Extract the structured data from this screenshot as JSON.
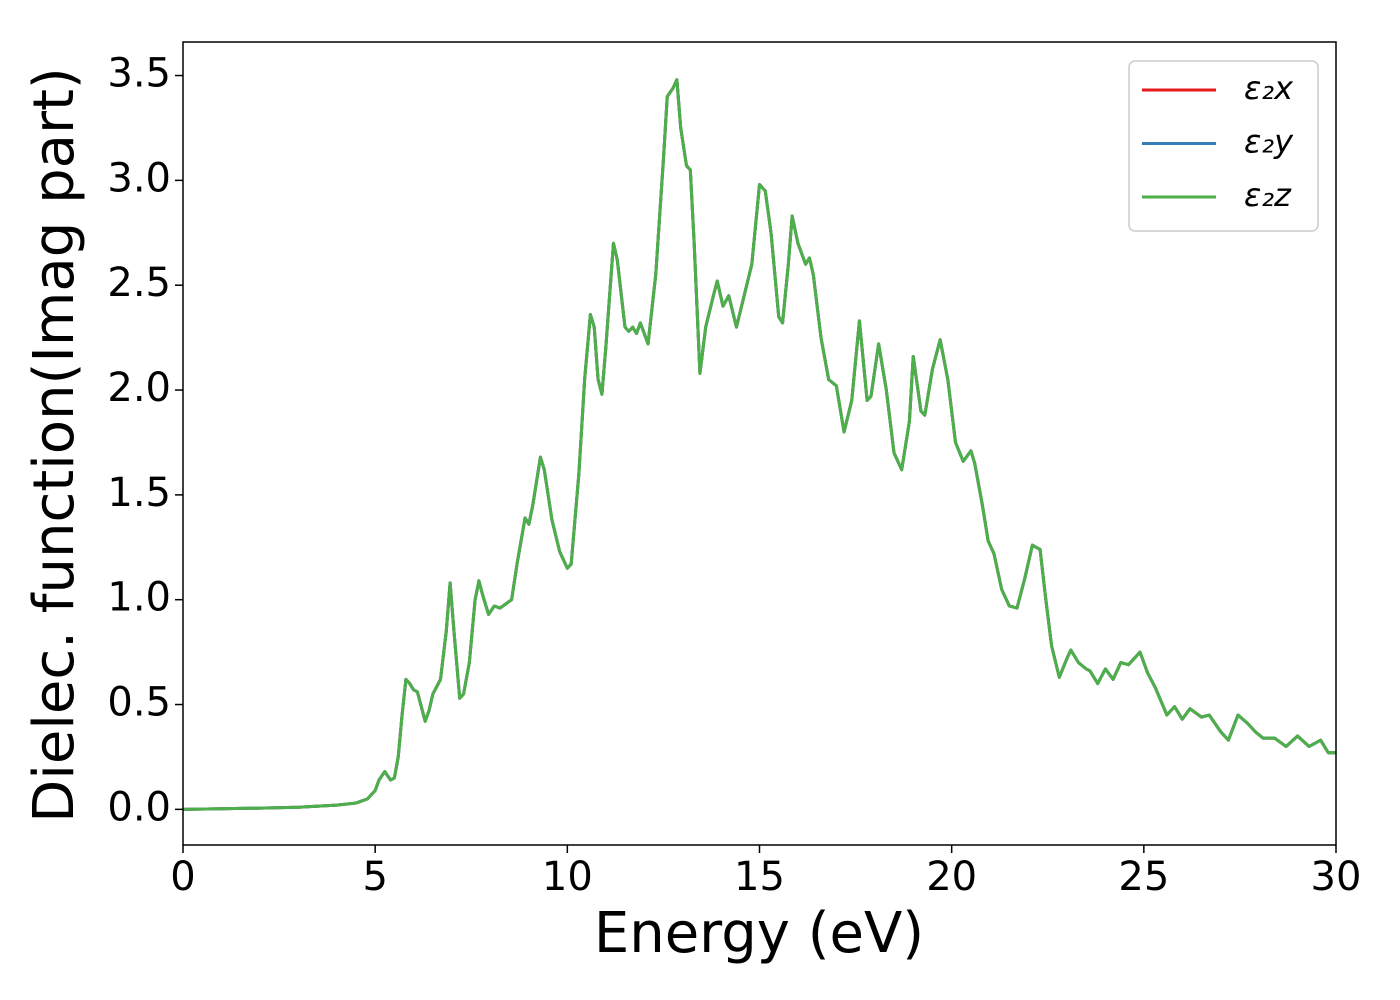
{
  "chart_data": {
    "type": "line",
    "xlabel": "Energy (eV)",
    "ylabel": "Dielec. function(Imag part)",
    "xlim": [
      0,
      30
    ],
    "xticks": [
      0,
      5,
      10,
      15,
      20,
      25,
      30
    ],
    "ylim": [
      -0.17,
      3.66
    ],
    "yticks": [
      {
        "value": 0,
        "label": "0.0"
      },
      0.5,
      {
        "value": 1,
        "label": "1.0"
      },
      1.5,
      {
        "value": 2,
        "label": "2.0"
      },
      2.5,
      {
        "value": 3,
        "label": "3.0"
      },
      3.5
    ],
    "legend": "upper right",
    "x": [
      0,
      1,
      2,
      3,
      4,
      4.5,
      4.8,
      5.0,
      5.1,
      5.25,
      5.4,
      5.5,
      5.6,
      5.7,
      5.8,
      5.9,
      6.0,
      6.1,
      6.3,
      6.4,
      6.5,
      6.7,
      6.85,
      6.95,
      7.05,
      7.2,
      7.3,
      7.45,
      7.6,
      7.7,
      7.8,
      7.95,
      8.1,
      8.25,
      8.4,
      8.55,
      8.7,
      8.9,
      9.0,
      9.1,
      9.3,
      9.4,
      9.6,
      9.8,
      10.0,
      10.1,
      10.3,
      10.45,
      10.6,
      10.7,
      10.8,
      10.9,
      11.0,
      11.2,
      11.3,
      11.5,
      11.6,
      11.7,
      11.8,
      11.9,
      12.1,
      12.3,
      12.5,
      12.6,
      12.75,
      12.85,
      12.95,
      13.1,
      13.2,
      13.3,
      13.45,
      13.6,
      13.8,
      13.9,
      14.05,
      14.2,
      14.4,
      14.6,
      14.8,
      15.0,
      15.15,
      15.3,
      15.5,
      15.6,
      15.75,
      15.85,
      16.0,
      16.2,
      16.3,
      16.4,
      16.6,
      16.8,
      17.0,
      17.2,
      17.4,
      17.6,
      17.8,
      17.9,
      18.1,
      18.3,
      18.5,
      18.7,
      18.9,
      19.0,
      19.2,
      19.3,
      19.5,
      19.7,
      19.9,
      20.1,
      20.3,
      20.5,
      20.6,
      20.7,
      20.8,
      20.95,
      21.1,
      21.3,
      21.5,
      21.7,
      21.9,
      22.1,
      22.3,
      22.45,
      22.6,
      22.8,
      23.0,
      23.1,
      23.3,
      23.5,
      23.6,
      23.8,
      24.0,
      24.2,
      24.4,
      24.6,
      24.9,
      25.1,
      25.3,
      25.6,
      25.8,
      26.0,
      26.2,
      26.5,
      26.7,
      27.0,
      27.2,
      27.45,
      27.7,
      27.9,
      28.1,
      28.4,
      28.7,
      29.0,
      29.3,
      29.6,
      29.8,
      30.0
    ],
    "series": [
      {
        "name": "ε₂x",
        "color": "#e41a1c",
        "values": [
          0,
          0.003,
          0.006,
          0.01,
          0.02,
          0.03,
          0.05,
          0.09,
          0.14,
          0.18,
          0.14,
          0.15,
          0.25,
          0.45,
          0.62,
          0.6,
          0.57,
          0.56,
          0.42,
          0.47,
          0.55,
          0.62,
          0.85,
          1.08,
          0.85,
          0.53,
          0.55,
          0.7,
          1.0,
          1.09,
          1.02,
          0.93,
          0.97,
          0.96,
          0.98,
          1.0,
          1.18,
          1.39,
          1.36,
          1.45,
          1.68,
          1.62,
          1.38,
          1.23,
          1.15,
          1.17,
          1.6,
          2.05,
          2.36,
          2.3,
          2.05,
          1.98,
          2.2,
          2.7,
          2.62,
          2.3,
          2.28,
          2.3,
          2.27,
          2.32,
          2.22,
          2.55,
          3.1,
          3.4,
          3.44,
          3.48,
          3.25,
          3.07,
          3.05,
          2.7,
          2.08,
          2.3,
          2.45,
          2.52,
          2.4,
          2.45,
          2.3,
          2.45,
          2.6,
          2.98,
          2.95,
          2.75,
          2.35,
          2.32,
          2.6,
          2.83,
          2.7,
          2.6,
          2.63,
          2.55,
          2.25,
          2.05,
          2.02,
          1.8,
          1.95,
          2.33,
          1.95,
          1.97,
          2.22,
          2.0,
          1.7,
          1.62,
          1.85,
          2.16,
          1.9,
          1.88,
          2.1,
          2.24,
          2.05,
          1.75,
          1.66,
          1.71,
          1.65,
          1.55,
          1.45,
          1.28,
          1.22,
          1.05,
          0.97,
          0.96,
          1.1,
          1.26,
          1.24,
          1.0,
          0.78,
          0.63,
          0.72,
          0.76,
          0.7,
          0.67,
          0.66,
          0.6,
          0.67,
          0.62,
          0.7,
          0.69,
          0.75,
          0.65,
          0.58,
          0.45,
          0.49,
          0.43,
          0.48,
          0.44,
          0.45,
          0.37,
          0.33,
          0.45,
          0.41,
          0.37,
          0.34,
          0.34,
          0.3,
          0.35,
          0.3,
          0.33,
          0.27,
          0.27
        ]
      },
      {
        "name": "ε₂y",
        "color": "#377eb8",
        "values": [
          0,
          0.003,
          0.006,
          0.01,
          0.02,
          0.03,
          0.05,
          0.09,
          0.14,
          0.18,
          0.14,
          0.15,
          0.25,
          0.45,
          0.62,
          0.6,
          0.57,
          0.56,
          0.42,
          0.47,
          0.55,
          0.62,
          0.85,
          1.08,
          0.85,
          0.53,
          0.55,
          0.7,
          1.0,
          1.09,
          1.02,
          0.93,
          0.97,
          0.96,
          0.98,
          1.0,
          1.18,
          1.39,
          1.36,
          1.45,
          1.68,
          1.62,
          1.38,
          1.23,
          1.15,
          1.17,
          1.6,
          2.05,
          2.36,
          2.3,
          2.05,
          1.98,
          2.2,
          2.7,
          2.62,
          2.3,
          2.28,
          2.3,
          2.27,
          2.32,
          2.22,
          2.55,
          3.1,
          3.4,
          3.44,
          3.48,
          3.25,
          3.07,
          3.05,
          2.7,
          2.08,
          2.3,
          2.45,
          2.52,
          2.4,
          2.45,
          2.3,
          2.45,
          2.6,
          2.98,
          2.95,
          2.75,
          2.35,
          2.32,
          2.6,
          2.83,
          2.7,
          2.6,
          2.63,
          2.55,
          2.25,
          2.05,
          2.02,
          1.8,
          1.95,
          2.33,
          1.95,
          1.97,
          2.22,
          2.0,
          1.7,
          1.62,
          1.85,
          2.16,
          1.9,
          1.88,
          2.1,
          2.24,
          2.05,
          1.75,
          1.66,
          1.71,
          1.65,
          1.55,
          1.45,
          1.28,
          1.22,
          1.05,
          0.97,
          0.96,
          1.1,
          1.26,
          1.24,
          1.0,
          0.78,
          0.63,
          0.72,
          0.76,
          0.7,
          0.67,
          0.66,
          0.6,
          0.67,
          0.62,
          0.7,
          0.69,
          0.75,
          0.65,
          0.58,
          0.45,
          0.49,
          0.43,
          0.48,
          0.44,
          0.45,
          0.37,
          0.33,
          0.45,
          0.41,
          0.37,
          0.34,
          0.34,
          0.3,
          0.35,
          0.3,
          0.33,
          0.27,
          0.27
        ]
      },
      {
        "name": "ε₂z",
        "color": "#4daf4a",
        "values": [
          0,
          0.003,
          0.006,
          0.01,
          0.02,
          0.03,
          0.05,
          0.09,
          0.14,
          0.18,
          0.14,
          0.15,
          0.25,
          0.45,
          0.62,
          0.6,
          0.57,
          0.56,
          0.42,
          0.47,
          0.55,
          0.62,
          0.85,
          1.08,
          0.85,
          0.53,
          0.55,
          0.7,
          1.0,
          1.09,
          1.02,
          0.93,
          0.97,
          0.96,
          0.98,
          1.0,
          1.18,
          1.39,
          1.36,
          1.45,
          1.68,
          1.62,
          1.38,
          1.23,
          1.15,
          1.17,
          1.6,
          2.05,
          2.36,
          2.3,
          2.05,
          1.98,
          2.2,
          2.7,
          2.62,
          2.3,
          2.28,
          2.3,
          2.27,
          2.32,
          2.22,
          2.55,
          3.1,
          3.4,
          3.44,
          3.48,
          3.25,
          3.07,
          3.05,
          2.7,
          2.08,
          2.3,
          2.45,
          2.52,
          2.4,
          2.45,
          2.3,
          2.45,
          2.6,
          2.98,
          2.95,
          2.75,
          2.35,
          2.32,
          2.6,
          2.83,
          2.7,
          2.6,
          2.63,
          2.55,
          2.25,
          2.05,
          2.02,
          1.8,
          1.95,
          2.33,
          1.95,
          1.97,
          2.22,
          2.0,
          1.7,
          1.62,
          1.85,
          2.16,
          1.9,
          1.88,
          2.1,
          2.24,
          2.05,
          1.75,
          1.66,
          1.71,
          1.65,
          1.55,
          1.45,
          1.28,
          1.22,
          1.05,
          0.97,
          0.96,
          1.1,
          1.26,
          1.24,
          1.0,
          0.78,
          0.63,
          0.72,
          0.76,
          0.7,
          0.67,
          0.66,
          0.6,
          0.67,
          0.62,
          0.7,
          0.69,
          0.75,
          0.65,
          0.58,
          0.45,
          0.49,
          0.43,
          0.48,
          0.44,
          0.45,
          0.37,
          0.33,
          0.45,
          0.41,
          0.37,
          0.34,
          0.34,
          0.3,
          0.35,
          0.3,
          0.33,
          0.27,
          0.27
        ]
      }
    ]
  }
}
